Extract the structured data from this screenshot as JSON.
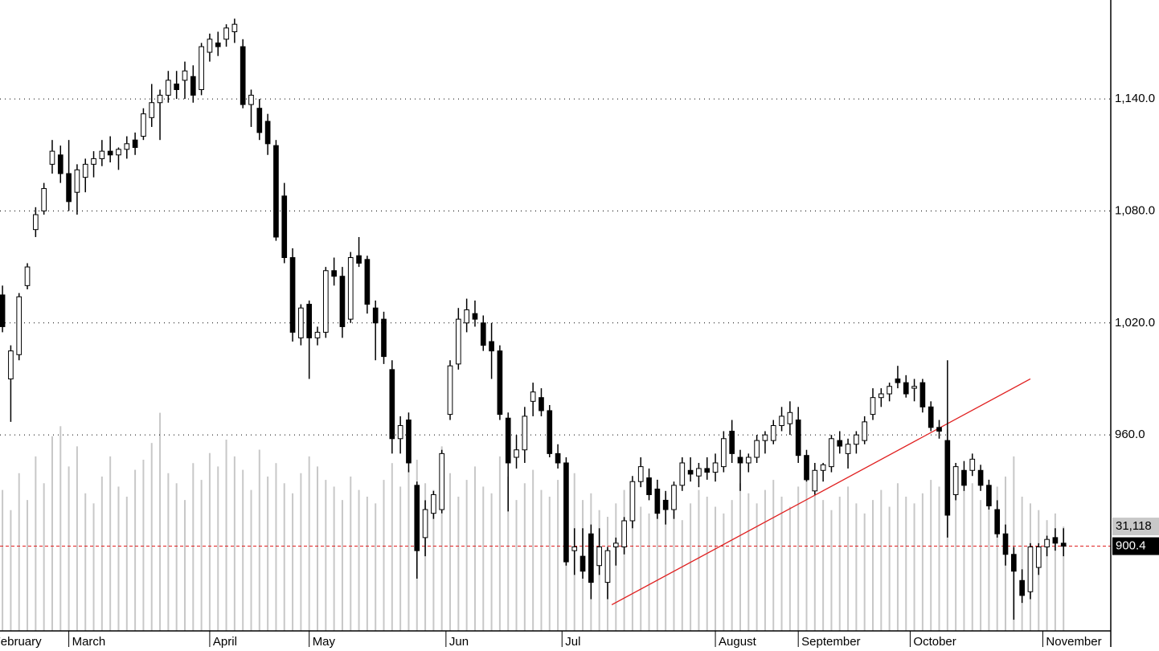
{
  "chart_data": {
    "type": "candlestick",
    "candles": [
      [
        1035,
        1040,
        1015,
        1018
      ],
      [
        990,
        1008,
        967,
        1005
      ],
      [
        1003,
        1036,
        1000,
        1034
      ],
      [
        1040,
        1052,
        1038,
        1050
      ],
      [
        1070,
        1082,
        1066,
        1078
      ],
      [
        1080,
        1095,
        1078,
        1092
      ],
      [
        1105,
        1118,
        1100,
        1112
      ],
      [
        1110,
        1115,
        1095,
        1100
      ],
      [
        1100,
        1118,
        1080,
        1085
      ],
      [
        1090,
        1105,
        1078,
        1102
      ],
      [
        1098,
        1108,
        1090,
        1105
      ],
      [
        1105,
        1112,
        1098,
        1108
      ],
      [
        1108,
        1118,
        1104,
        1112
      ],
      [
        1112,
        1120,
        1106,
        1110
      ],
      [
        1110,
        1114,
        1102,
        1113
      ],
      [
        1113,
        1120,
        1108,
        1116
      ],
      [
        1118,
        1122,
        1110,
        1114
      ],
      [
        1120,
        1135,
        1118,
        1132
      ],
      [
        1130,
        1148,
        1125,
        1138
      ],
      [
        1138,
        1145,
        1118,
        1142
      ],
      [
        1142,
        1155,
        1138,
        1150
      ],
      [
        1148,
        1155,
        1140,
        1145
      ],
      [
        1150,
        1160,
        1140,
        1155
      ],
      [
        1152,
        1158,
        1138,
        1142
      ],
      [
        1145,
        1170,
        1142,
        1168
      ],
      [
        1165,
        1175,
        1160,
        1172
      ],
      [
        1170,
        1176,
        1163,
        1168
      ],
      [
        1172,
        1180,
        1168,
        1178
      ],
      [
        1176,
        1183,
        1170,
        1180
      ],
      [
        1168,
        1172,
        1135,
        1137
      ],
      [
        1137,
        1145,
        1125,
        1142
      ],
      [
        1135,
        1140,
        1118,
        1122
      ],
      [
        1128,
        1132,
        1110,
        1116
      ],
      [
        1115,
        1118,
        1064,
        1066
      ],
      [
        1088,
        1095,
        1052,
        1055
      ],
      [
        1055,
        1060,
        1010,
        1015
      ],
      [
        1012,
        1030,
        1008,
        1028
      ],
      [
        1030,
        1032,
        990,
        1012
      ],
      [
        1012,
        1018,
        1008,
        1015
      ],
      [
        1015,
        1050,
        1012,
        1048
      ],
      [
        1048,
        1055,
        1040,
        1045
      ],
      [
        1045,
        1050,
        1012,
        1018
      ],
      [
        1022,
        1058,
        1020,
        1055
      ],
      [
        1056,
        1066,
        1050,
        1052
      ],
      [
        1054,
        1056,
        1025,
        1030
      ],
      [
        1028,
        1032,
        1000,
        1020
      ],
      [
        1022,
        1026,
        998,
        1002
      ],
      [
        995,
        1000,
        950,
        958
      ],
      [
        958,
        970,
        950,
        965
      ],
      [
        968,
        972,
        940,
        945
      ],
      [
        933,
        935,
        883,
        898
      ],
      [
        905,
        925,
        895,
        920
      ],
      [
        918,
        930,
        915,
        928
      ],
      [
        920,
        952,
        918,
        950
      ],
      [
        971,
        1000,
        968,
        997
      ],
      [
        998,
        1028,
        995,
        1022
      ],
      [
        1020,
        1033,
        1015,
        1027
      ],
      [
        1025,
        1032,
        1018,
        1022
      ],
      [
        1020,
        1024,
        1005,
        1008
      ],
      [
        1010,
        1020,
        990,
        1005
      ],
      [
        1005,
        1008,
        968,
        971
      ],
      [
        969,
        972,
        919,
        945
      ],
      [
        948,
        960,
        942,
        952
      ],
      [
        952,
        975,
        945,
        970
      ],
      [
        978,
        988,
        970,
        983
      ],
      [
        980,
        985,
        970,
        973
      ],
      [
        973,
        976,
        948,
        950
      ],
      [
        950,
        955,
        942,
        945
      ],
      [
        945,
        948,
        890,
        892
      ],
      [
        898,
        910,
        885,
        900
      ],
      [
        895,
        910,
        883,
        887
      ],
      [
        907,
        912,
        872,
        881
      ],
      [
        890,
        910,
        885,
        900
      ],
      [
        881,
        900,
        872,
        898
      ],
      [
        900,
        905,
        890,
        902
      ],
      [
        900,
        916,
        896,
        914
      ],
      [
        914,
        938,
        910,
        935
      ],
      [
        935,
        948,
        932,
        943
      ],
      [
        937,
        942,
        925,
        928
      ],
      [
        931,
        936,
        915,
        918
      ],
      [
        925,
        930,
        912,
        920
      ],
      [
        920,
        935,
        915,
        933
      ],
      [
        933,
        948,
        930,
        945
      ],
      [
        941,
        948,
        935,
        939
      ],
      [
        938,
        945,
        932,
        942
      ],
      [
        942,
        948,
        936,
        940
      ],
      [
        940,
        950,
        935,
        945
      ],
      [
        943,
        962,
        940,
        958
      ],
      [
        962,
        968,
        945,
        950
      ],
      [
        948,
        952,
        930,
        945
      ],
      [
        945,
        950,
        940,
        948
      ],
      [
        948,
        960,
        945,
        957
      ],
      [
        957,
        962,
        950,
        960
      ],
      [
        957,
        968,
        955,
        965
      ],
      [
        965,
        975,
        962,
        970
      ],
      [
        966,
        978,
        960,
        972
      ],
      [
        968,
        975,
        945,
        949
      ],
      [
        949,
        952,
        935,
        936
      ],
      [
        930,
        945,
        928,
        941
      ],
      [
        941,
        945,
        935,
        944
      ],
      [
        943,
        960,
        940,
        958
      ],
      [
        957,
        962,
        950,
        954
      ],
      [
        950,
        958,
        942,
        955
      ],
      [
        955,
        962,
        950,
        960
      ],
      [
        957,
        970,
        955,
        967
      ],
      [
        971,
        985,
        968,
        980
      ],
      [
        980,
        985,
        975,
        982
      ],
      [
        982,
        988,
        978,
        986
      ],
      [
        990,
        997,
        985,
        988
      ],
      [
        988,
        992,
        980,
        982
      ],
      [
        985,
        990,
        978,
        986
      ],
      [
        988,
        990,
        972,
        975
      ],
      [
        975,
        978,
        962,
        964
      ],
      [
        964,
        968,
        958,
        962
      ],
      [
        957,
        1000,
        905,
        917
      ],
      [
        928,
        945,
        925,
        943
      ],
      [
        941,
        946,
        930,
        933
      ],
      [
        941,
        950,
        938,
        947
      ],
      [
        941,
        944,
        930,
        933
      ],
      [
        933,
        936,
        920,
        922
      ],
      [
        920,
        925,
        905,
        907
      ],
      [
        907,
        912,
        890,
        896
      ],
      [
        896,
        900,
        861,
        887
      ],
      [
        882,
        888,
        870,
        874
      ],
      [
        876,
        902,
        872,
        900
      ],
      [
        889,
        902,
        885,
        900
      ],
      [
        900,
        906,
        895,
        904
      ],
      [
        905,
        910,
        898,
        902
      ],
      [
        902,
        910,
        895,
        900.4
      ]
    ],
    "volume": [
      42000,
      36000,
      47000,
      39000,
      52000,
      44000,
      58000,
      61000,
      49000,
      55000,
      41000,
      38000,
      46000,
      52000,
      43000,
      40000,
      48000,
      51000,
      56000,
      65000,
      47000,
      44000,
      39000,
      50000,
      45000,
      53000,
      49000,
      57000,
      52000,
      48000,
      42000,
      54000,
      46000,
      50000,
      44000,
      41000,
      47000,
      52000,
      49000,
      45000,
      43000,
      39000,
      46000,
      42000,
      40000,
      38000,
      45000,
      50000,
      43000,
      48000,
      51000,
      44000,
      42000,
      55000,
      47000,
      40000,
      45000,
      49000,
      43000,
      41000,
      52000,
      46000,
      39000,
      44000,
      48000,
      42000,
      40000,
      45000,
      50000,
      47000,
      39000,
      41000,
      36000,
      34000,
      38000,
      42000,
      40000,
      37000,
      35000,
      39000,
      41000,
      36000,
      33000,
      38000,
      42000,
      40000,
      37000,
      35000,
      39000,
      44000,
      41000,
      38000,
      42000,
      45000,
      40000,
      37000,
      43000,
      46000,
      41000,
      39000,
      36000,
      40000,
      43000,
      38000,
      35000,
      39000,
      42000,
      37000,
      44000,
      40000,
      38000,
      41000,
      45000,
      43000,
      60000,
      47000,
      42000,
      44000,
      39000,
      41000,
      43000,
      46000,
      52000,
      40000,
      38000,
      36000,
      33000,
      35000,
      31118
    ],
    "xlim": [
      -0.3,
      133.7
    ],
    "xticks": [
      {
        "value": -1.5,
        "label": "February"
      },
      {
        "value": 8,
        "label": "March"
      },
      {
        "value": 25,
        "label": "April"
      },
      {
        "value": 37,
        "label": "May"
      },
      {
        "value": 53.5,
        "label": "Jun"
      },
      {
        "value": 67.5,
        "label": "Jul"
      },
      {
        "value": 86,
        "label": "August"
      },
      {
        "value": 96,
        "label": "September"
      },
      {
        "value": 109.5,
        "label": "October"
      },
      {
        "value": 125.5,
        "label": "November"
      }
    ],
    "ylim": [
      855,
      1193
    ],
    "yticks": [
      {
        "value": 960,
        "label": "960.0"
      },
      {
        "value": 1020,
        "label": "1,020.0"
      },
      {
        "value": 1080,
        "label": "1,080.0"
      },
      {
        "value": 1140,
        "label": "1,140.0"
      }
    ],
    "y2lim": [
      0,
      188000
    ],
    "grid": true,
    "price_marker": {
      "value": 900.4,
      "color": "#e02020"
    },
    "volume_marker": {
      "value": 31118,
      "label": "31,118"
    },
    "volume_color": "#c8c8c8",
    "trendline": {
      "x": [
        73.5,
        124
      ],
      "y": [
        869,
        990
      ],
      "color": "#e02020"
    }
  }
}
